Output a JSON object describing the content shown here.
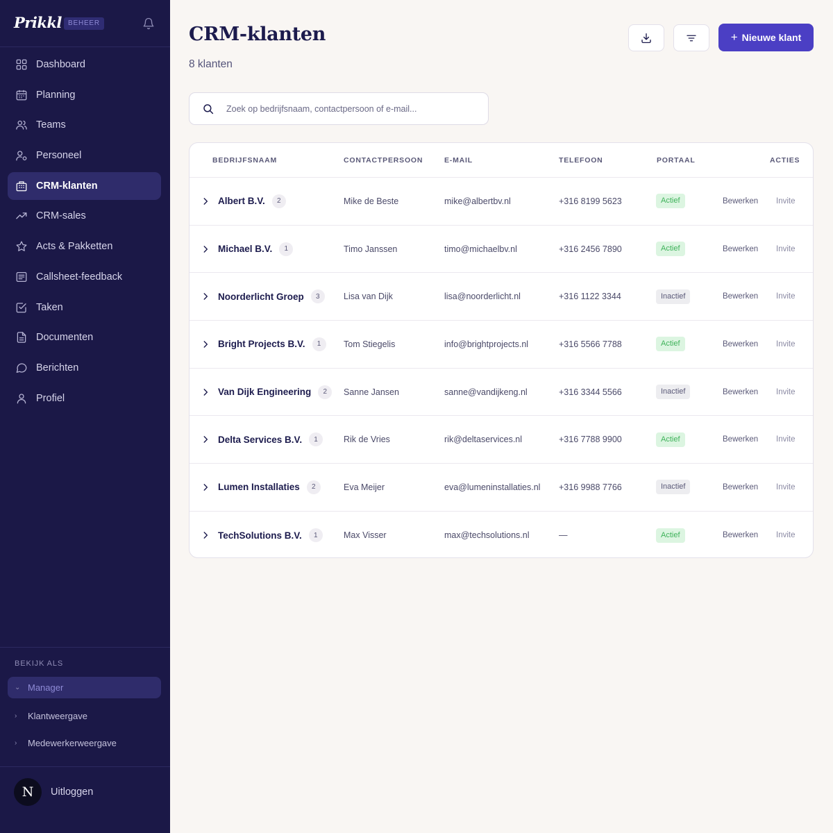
{
  "sidebar": {
    "logo": "Prikkl",
    "badge": "BEHEER",
    "nav": [
      {
        "label": "Dashboard",
        "icon": "dashboard-icon"
      },
      {
        "label": "Planning",
        "icon": "calendar-icon"
      },
      {
        "label": "Teams",
        "icon": "team-icon"
      },
      {
        "label": "Personeel",
        "icon": "user-settings-icon"
      },
      {
        "label": "CRM-klanten",
        "icon": "building-icon",
        "active": true
      },
      {
        "label": "CRM-sales",
        "icon": "trend-up-icon"
      },
      {
        "label": "Acts & Pakketten",
        "icon": "star-icon"
      },
      {
        "label": "Callsheet-feedback",
        "icon": "feedback-icon"
      },
      {
        "label": "Taken",
        "icon": "checkbox-icon"
      },
      {
        "label": "Documenten",
        "icon": "document-icon"
      },
      {
        "label": "Berichten",
        "icon": "chat-icon"
      },
      {
        "label": "Profiel",
        "icon": "user-icon"
      }
    ],
    "view_as": {
      "label": "BEKIJK ALS",
      "selected": "Manager",
      "options": [
        "Klantweergave",
        "Medewerkerweergave"
      ]
    },
    "user": {
      "initial": "N",
      "logout_label": "Uitloggen"
    }
  },
  "header": {
    "title": "CRM-klanten",
    "subtitle": "8 klanten",
    "new_button": "Nieuwe klant",
    "download_icon": "download-icon",
    "filter_icon": "filter-icon"
  },
  "search": {
    "placeholder": "Zoek op bedrijfsnaam, contactpersoon of e-mail..."
  },
  "table": {
    "columns": [
      "BEDRIJFSNAAM",
      "CONTACTPERSOON",
      "E-MAIL",
      "TELEFOON",
      "PORTAAL",
      "ACTIES"
    ],
    "rows": [
      {
        "company": "Albert B.V.",
        "count": "2",
        "contact": "Mike de Beste",
        "email": "mike@albertbv.nl",
        "phone": "+316 8199 5623",
        "portal": "Actief",
        "edit": "Bewerken",
        "invite": "Invite"
      },
      {
        "company": "Michael B.V.",
        "count": "1",
        "contact": "Timo Janssen",
        "email": "timo@michaelbv.nl",
        "phone": "+316 2456 7890",
        "portal": "Actief",
        "edit": "Bewerken",
        "invite": "Invite"
      },
      {
        "company": "Noorderlicht Groep",
        "count": "3",
        "contact": "Lisa van Dijk",
        "email": "lisa@noorderlicht.nl",
        "phone": "+316 1122 3344",
        "portal": "Inactief",
        "edit": "Bewerken",
        "invite": "Invite"
      },
      {
        "company": "Bright Projects B.V.",
        "count": "1",
        "contact": "Tom Stiegelis",
        "email": "info@brightprojects.nl",
        "phone": "+316 5566 7788",
        "portal": "Actief",
        "edit": "Bewerken",
        "invite": "Invite"
      },
      {
        "company": "Van Dijk Engineering",
        "count": "2",
        "contact": "Sanne Jansen",
        "email": "sanne@vandijkeng.nl",
        "phone": "+316 3344 5566",
        "portal": "Inactief",
        "edit": "Bewerken",
        "invite": "Invite"
      },
      {
        "company": "Delta Services B.V.",
        "count": "1",
        "contact": "Rik de Vries",
        "email": "rik@deltaservices.nl",
        "phone": "+316 7788 9900",
        "portal": "Actief",
        "edit": "Bewerken",
        "invite": "Invite"
      },
      {
        "company": "Lumen Installaties",
        "count": "2",
        "contact": "Eva Meijer",
        "email": "eva@lumeninstallaties.nl",
        "phone": "+316 9988 7766",
        "portal": "Inactief",
        "edit": "Bewerken",
        "invite": "Invite"
      },
      {
        "company": "TechSolutions B.V.",
        "count": "1",
        "contact": "Max Visser",
        "email": "max@techsolutions.nl",
        "phone": "—",
        "portal": "Actief",
        "edit": "Bewerken",
        "invite": "Invite"
      }
    ]
  },
  "colors": {
    "sidebar_bg": "#1b1847",
    "accent": "#4b3fc4",
    "active_status": "#3fb25a",
    "page_bg": "#f9f6f3"
  }
}
